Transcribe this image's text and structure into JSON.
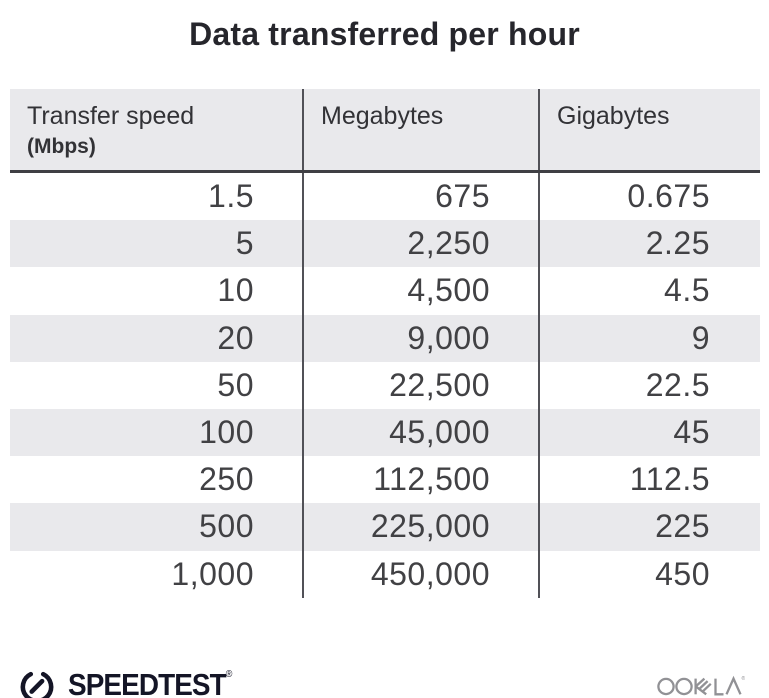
{
  "title": "Data transferred per hour",
  "colors": {
    "stripe": "#e9e9ec",
    "divider": "#515157",
    "header_border": "#3f3f44",
    "number_text": "#414144",
    "speedtest_brand": "#141526",
    "ookla_gray": "#919195"
  },
  "table": {
    "headers": [
      {
        "label": "Transfer speed",
        "sub": "(Mbps)"
      },
      {
        "label": "Megabytes",
        "sub": ""
      },
      {
        "label": "Gigabytes",
        "sub": ""
      }
    ]
  },
  "chart_data": {
    "type": "table",
    "title": "Data transferred per hour",
    "columns": [
      "Transfer speed (Mbps)",
      "Megabytes",
      "Gigabytes"
    ],
    "rows": [
      [
        "1.5",
        "675",
        "0.675"
      ],
      [
        "5",
        "2,250",
        "2.25"
      ],
      [
        "10",
        "4,500",
        "4.5"
      ],
      [
        "20",
        "9,000",
        "9"
      ],
      [
        "50",
        "22,500",
        "22.5"
      ],
      [
        "100",
        "45,000",
        "45"
      ],
      [
        "250",
        "112,500",
        "112.5"
      ],
      [
        "500",
        "225,000",
        "225"
      ],
      [
        "1,000",
        "450,000",
        "450"
      ]
    ],
    "layout_hints": {
      "striped_rows": true,
      "stripe_start": "second_row",
      "column_alignment": [
        "right",
        "right",
        "right"
      ]
    }
  },
  "footer": {
    "speedtest_label": "SPEEDTEST",
    "speedtest_trademark": "®",
    "ookla_label": "OOKLA",
    "ookla_trademark": "®"
  }
}
